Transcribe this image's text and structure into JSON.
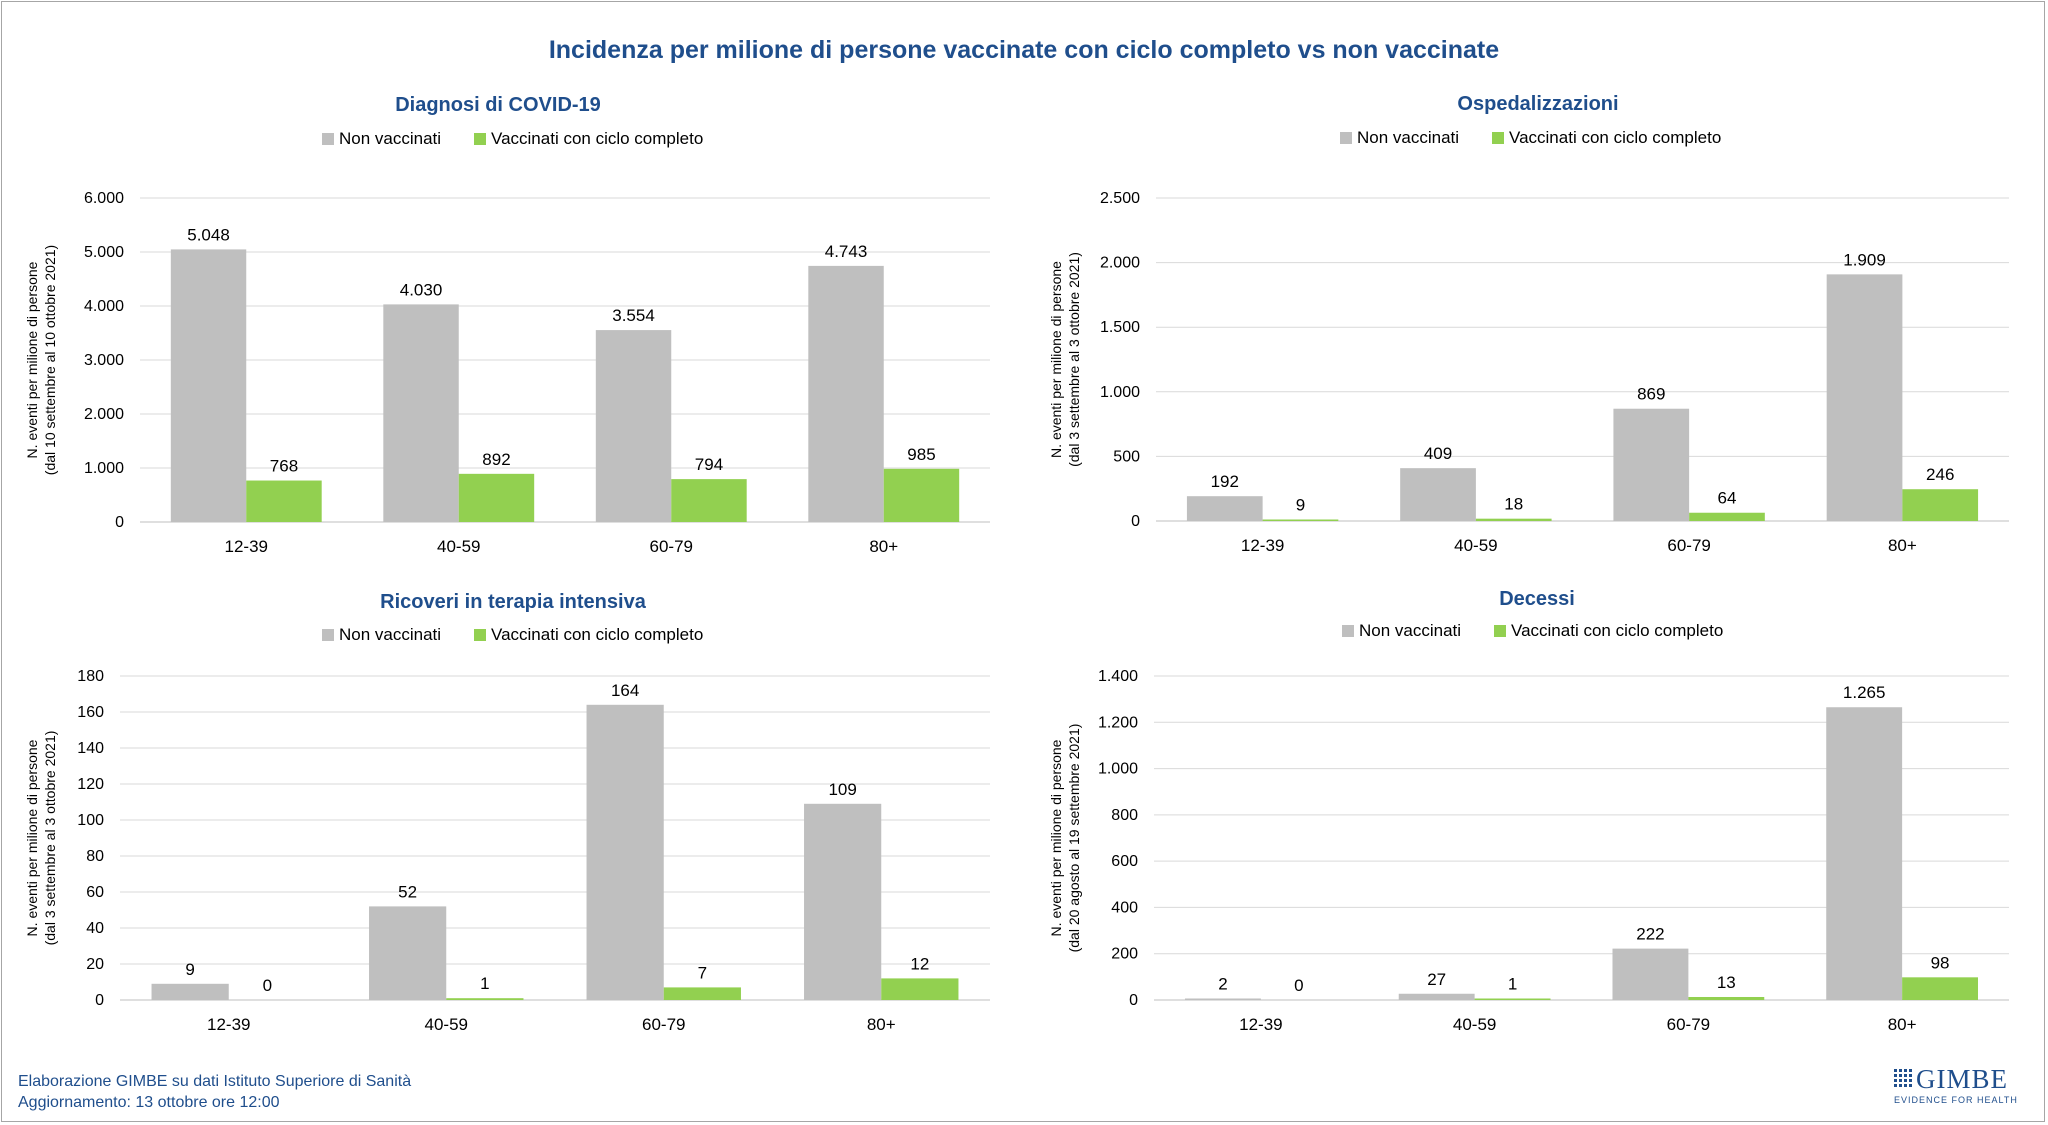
{
  "title": "Incidenza per milione di persone vaccinate con ciclo completo vs non vaccinate",
  "footer": {
    "line1": "Elaborazione GIMBE su dati Istituto Superiore di Sanità",
    "line2": "Aggiornamento: 13 ottobre ore 12:00"
  },
  "logo": {
    "name": "GIMBE",
    "tagline": "EVIDENCE FOR HEALTH"
  },
  "colors": {
    "title": "#1f4e8c",
    "non_vaccinati": "#bfbfbf",
    "vaccinati": "#92d050",
    "grid": "#d9d9d9"
  },
  "chart_data": [
    {
      "type": "bar",
      "title": "Diagnosi di COVID-19",
      "ylabel": [
        "N. eventi per milione di persone",
        "(dal 10  settembre al 10  ottobre 2021)"
      ],
      "categories": [
        "12-39",
        "40-59",
        "60-79",
        "80+"
      ],
      "series": [
        {
          "name": "Non vaccinati",
          "values": [
            5048,
            4030,
            3554,
            4743
          ],
          "labels": [
            "5.048",
            "4.030",
            "3.554",
            "4.743"
          ]
        },
        {
          "name": "Vaccinati con ciclo completo",
          "values": [
            768,
            892,
            794,
            985
          ],
          "labels": [
            "768",
            "892",
            "794",
            "985"
          ]
        }
      ],
      "ylim": [
        0,
        6000
      ],
      "yticks": [
        0,
        1000,
        2000,
        3000,
        4000,
        5000,
        6000
      ],
      "yticklabels": [
        "0",
        "1.000",
        "2.000",
        "3.000",
        "4.000",
        "5.000",
        "6.000"
      ],
      "grid": true,
      "legend": "top"
    },
    {
      "type": "bar",
      "title": "Ospedalizzazioni",
      "ylabel": [
        "N. eventi per milione di persone",
        "(dal 3  settembre al 3  ottobre 2021)"
      ],
      "categories": [
        "12-39",
        "40-59",
        "60-79",
        "80+"
      ],
      "series": [
        {
          "name": "Non vaccinati",
          "values": [
            192,
            409,
            869,
            1909
          ],
          "labels": [
            "192",
            "409",
            "869",
            "1.909"
          ]
        },
        {
          "name": "Vaccinati con ciclo completo",
          "values": [
            9,
            18,
            64,
            246
          ],
          "labels": [
            "9",
            "18",
            "64",
            "246"
          ]
        }
      ],
      "ylim": [
        0,
        2500
      ],
      "yticks": [
        0,
        500,
        1000,
        1500,
        2000,
        2500
      ],
      "yticklabels": [
        "0",
        "500",
        "1.000",
        "1.500",
        "2.000",
        "2.500"
      ],
      "grid": true,
      "legend": "top"
    },
    {
      "type": "bar",
      "title": "Ricoveri in terapia intensiva",
      "ylabel": [
        "N. eventi per milione di persone",
        "(dal 3  settembre al 3  ottobre 2021)"
      ],
      "categories": [
        "12-39",
        "40-59",
        "60-79",
        "80+"
      ],
      "series": [
        {
          "name": "Non vaccinati",
          "values": [
            9,
            52,
            164,
            109
          ],
          "labels": [
            "9",
            "52",
            "164",
            "109"
          ]
        },
        {
          "name": "Vaccinati con ciclo completo",
          "values": [
            0,
            1,
            7,
            12
          ],
          "labels": [
            "0",
            "1",
            "7",
            "12"
          ]
        }
      ],
      "ylim": [
        0,
        180
      ],
      "yticks": [
        0,
        20,
        40,
        60,
        80,
        100,
        120,
        140,
        160,
        180
      ],
      "yticklabels": [
        "0",
        "20",
        "40",
        "60",
        "80",
        "100",
        "120",
        "140",
        "160",
        "180"
      ],
      "grid": true,
      "legend": "top"
    },
    {
      "type": "bar",
      "title": "Decessi",
      "ylabel": [
        "N. eventi per milione di persone",
        "(dal 20  agosto al 19  settembre 2021)"
      ],
      "categories": [
        "12-39",
        "40-59",
        "60-79",
        "80+"
      ],
      "series": [
        {
          "name": "Non vaccinati",
          "values": [
            2,
            27,
            222,
            1265
          ],
          "labels": [
            "2",
            "27",
            "222",
            "1.265"
          ]
        },
        {
          "name": "Vaccinati con ciclo completo",
          "values": [
            0,
            1,
            13,
            98
          ],
          "labels": [
            "0",
            "1",
            "13",
            "98"
          ]
        }
      ],
      "ylim": [
        0,
        1400
      ],
      "yticks": [
        0,
        200,
        400,
        600,
        800,
        1000,
        1200,
        1400
      ],
      "yticklabels": [
        "0",
        "200",
        "400",
        "600",
        "800",
        "1.000",
        "1.200",
        "1.400"
      ],
      "grid": true,
      "legend": "top"
    }
  ]
}
